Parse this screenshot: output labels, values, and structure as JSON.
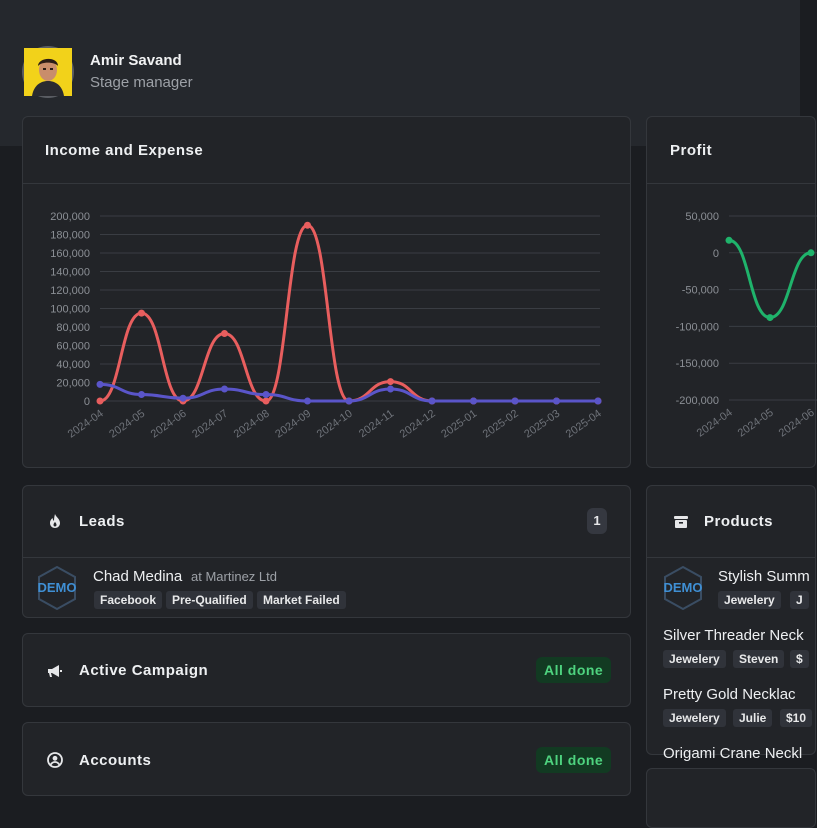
{
  "user": {
    "name": "Amir Savand",
    "role": "Stage manager"
  },
  "income_expense": {
    "title": "Income and Expense",
    "colors": {
      "income": "#e85e5e",
      "expense": "#5a55c9"
    }
  },
  "profit": {
    "title": "Profit",
    "colors": {
      "profit": "#1fb36b"
    }
  },
  "chart_data": [
    {
      "type": "line",
      "title": "Income and Expense",
      "xlabel": "",
      "ylabel": "",
      "categories": [
        "2024-04",
        "2024-05",
        "2024-06",
        "2024-07",
        "2024-08",
        "2024-09",
        "2024-10",
        "2024-11",
        "2024-12",
        "2025-01",
        "2025-02",
        "2025-03",
        "2025-04"
      ],
      "yticks": [
        "0",
        "20,000",
        "40,000",
        "60,000",
        "80,000",
        "100,000",
        "120,000",
        "140,000",
        "160,000",
        "180,000",
        "200,000"
      ],
      "ylim": [
        0,
        200000
      ],
      "grid": true,
      "series": [
        {
          "values": [
            0,
            95000,
            0,
            73000,
            0,
            190000,
            0,
            21000,
            0,
            0,
            0,
            0,
            0
          ]
        },
        {
          "values": [
            18000,
            7000,
            3000,
            13000,
            7000,
            0,
            0,
            13000,
            0,
            0,
            0,
            0,
            0
          ]
        }
      ]
    },
    {
      "type": "line",
      "title": "Profit",
      "xlabel": "",
      "ylabel": "",
      "categories": [
        "2024-04",
        "2024-05",
        "2024-06"
      ],
      "yticks": [
        "50,000",
        "0",
        "-50,000",
        "-100,000",
        "-150,000",
        "-200,000"
      ],
      "ylim": [
        -200000,
        50000
      ],
      "grid": true,
      "series": [
        {
          "values": [
            17000,
            -88000,
            0
          ]
        }
      ]
    }
  ],
  "leads": {
    "title": "Leads",
    "count": "1",
    "items": [
      {
        "logo": "DEMO",
        "name": "Chad Medina",
        "company": "at Martinez Ltd",
        "tags": [
          "Facebook",
          "Pre-Qualified",
          "Market Failed"
        ]
      }
    ]
  },
  "active_campaign": {
    "title": "Active Campaign",
    "status": "All done"
  },
  "accounts": {
    "title": "Accounts",
    "status": "All done"
  },
  "products": {
    "title": "Products",
    "items": [
      {
        "logo": "DEMO",
        "name": "Stylish Summ",
        "tags": [
          "Jewelery",
          "J"
        ]
      },
      {
        "name": "Silver Threader Neck",
        "tags": [
          "Jewelery",
          "Steven",
          "$"
        ]
      },
      {
        "name": "Pretty Gold Necklac",
        "tags": [
          "Jewelery",
          "Julie",
          "$10"
        ]
      },
      {
        "name": "Origami Crane Neckl",
        "tags": []
      }
    ]
  }
}
